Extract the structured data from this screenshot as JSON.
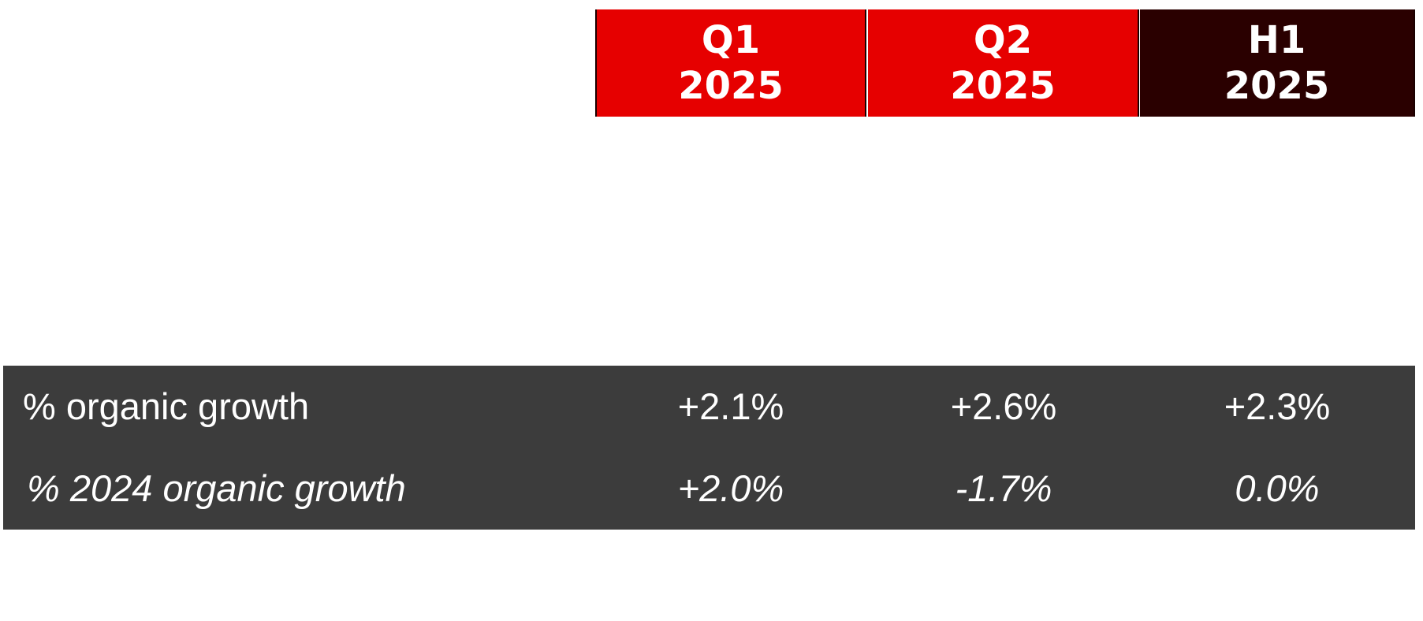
{
  "columns": [
    {
      "line1": "Q1",
      "line2": "2025",
      "color": "#e60000"
    },
    {
      "line1": "Q2",
      "line2": "2025",
      "color": "#e60000"
    },
    {
      "line1": "H1",
      "line2": "2025",
      "color": "#2a0000"
    }
  ],
  "rows": [
    {
      "label": "% organic growth",
      "values": [
        "+2.1%",
        "+2.6%",
        "+2.3%"
      ]
    },
    {
      "label": "% 2024 organic growth",
      "values": [
        "+2.0%",
        "-1.7%",
        "0.0%"
      ]
    }
  ],
  "band_color": "#3c3c3c"
}
